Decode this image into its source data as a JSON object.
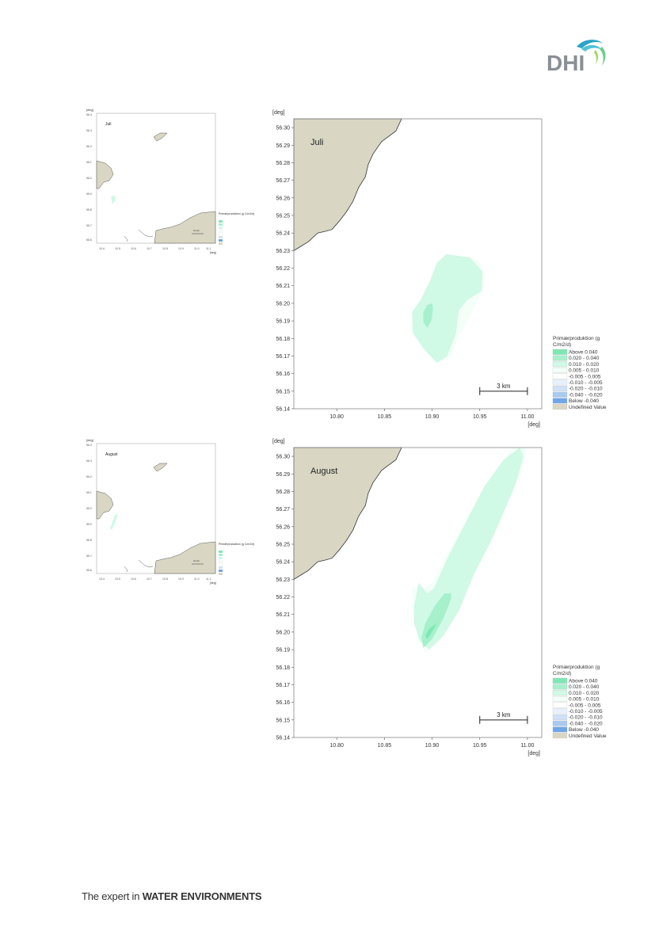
{
  "logo": {
    "text": "DHI"
  },
  "footer": {
    "prefix": "The expert in ",
    "bold": "WATER ENVIRONMENTS"
  },
  "axis_unit": "[deg]",
  "colors": {
    "land": "#d9d7c4",
    "coast": "#333333",
    "above_0_040": "#7ee8b4",
    "c_0_020_0_040": "#a6f0cc",
    "c_0_010_0_020": "#d0f9e6",
    "c_0_005_0_010": "#f4fff9"
  },
  "overview": {
    "x_ticks": [
      "10.4",
      "10.5",
      "10.6",
      "10.7",
      "10.8",
      "10.9",
      "11.0",
      "11.1"
    ],
    "y_ticks": [
      "56.4",
      "56.3",
      "56.2",
      "56.1",
      "56.0",
      "55.9",
      "55.8",
      "55.7",
      "55.6"
    ],
    "scale_label": "10 km",
    "legend_title": "Primærproduktion (g C/m2/d)"
  },
  "legend": {
    "title_line1": "Primærproduktion (g",
    "title_line2": "C/m2/d)",
    "items": [
      {
        "label": "Above    0.040",
        "color": "#7ee8b4"
      },
      {
        "label": " 0.020 -  0.040",
        "color": "#a6f0cc"
      },
      {
        "label": " 0.010 -  0.020",
        "color": "#d0f9e6"
      },
      {
        "label": " 0.005 -  0.010",
        "color": "#f4fff9"
      },
      {
        "label": "-0.005 -  0.005",
        "color": "#ffffff"
      },
      {
        "label": "-0.010 - -0.005",
        "color": "#e8f1fb"
      },
      {
        "label": "-0.020 - -0.010",
        "color": "#cfe1f7"
      },
      {
        "label": "-0.040 - -0.020",
        "color": "#a9c9f0"
      },
      {
        "label": "Below    -0.040",
        "color": "#6fa6e8"
      },
      {
        "label": "Undefined Value",
        "color": "#d9d7c4"
      }
    ]
  },
  "chart_data": [
    {
      "type": "heatmap",
      "title": "Juli",
      "xlabel": "[deg]",
      "ylabel": "[deg]",
      "xlim": [
        10.755,
        11.015
      ],
      "ylim": [
        56.14,
        56.305
      ],
      "x_ticks": [
        "10.80",
        "10.85",
        "10.90",
        "10.95",
        "11.00"
      ],
      "y_ticks": [
        "56.30",
        "56.29",
        "56.28",
        "56.27",
        "56.26",
        "56.25",
        "56.24",
        "56.23",
        "56.22",
        "56.21",
        "56.20",
        "56.19",
        "56.18",
        "56.17",
        "56.16",
        "56.15",
        "56.14"
      ],
      "scale_bar": "3 km",
      "legend_position": "right-bottom",
      "zones": [
        {
          "class": "0.005 - 0.010",
          "color": "#f4fff9",
          "polygon": [
            [
              10.928,
              56.227
            ],
            [
              10.95,
              56.224
            ],
            [
              10.955,
              56.21
            ],
            [
              10.945,
              56.198
            ],
            [
              10.93,
              56.183
            ],
            [
              10.918,
              56.168
            ],
            [
              10.905,
              56.167
            ],
            [
              10.89,
              56.174
            ],
            [
              10.877,
              56.186
            ],
            [
              10.882,
              56.196
            ],
            [
              10.893,
              56.207
            ],
            [
              10.905,
              56.22
            ]
          ]
        },
        {
          "class": "0.010 - 0.020",
          "color": "#d0f9e6",
          "polygon": [
            [
              10.915,
              56.228
            ],
            [
              10.94,
              56.226
            ],
            [
              10.953,
              56.218
            ],
            [
              10.952,
              56.207
            ],
            [
              10.937,
              56.202
            ],
            [
              10.928,
              56.196
            ],
            [
              10.925,
              56.183
            ],
            [
              10.916,
              56.17
            ],
            [
              10.905,
              56.166
            ],
            [
              10.893,
              56.173
            ],
            [
              10.88,
              56.183
            ],
            [
              10.879,
              56.195
            ],
            [
              10.888,
              56.202
            ],
            [
              10.898,
              56.213
            ],
            [
              10.905,
              56.223
            ]
          ]
        },
        {
          "class": "0.020 - 0.040",
          "color": "#a6f0cc",
          "polygon": [
            [
              10.9,
              56.2
            ],
            [
              10.901,
              56.197
            ],
            [
              10.899,
              56.19
            ],
            [
              10.895,
              56.186
            ],
            [
              10.891,
              56.189
            ],
            [
              10.891,
              56.195
            ],
            [
              10.895,
              56.199
            ]
          ]
        }
      ]
    },
    {
      "type": "heatmap",
      "title": "August",
      "xlabel": "[deg]",
      "ylabel": "[deg]",
      "xlim": [
        10.755,
        11.015
      ],
      "ylim": [
        56.14,
        56.305
      ],
      "x_ticks": [
        "10.80",
        "10.85",
        "10.90",
        "10.95",
        "11.00"
      ],
      "y_ticks": [
        "56.30",
        "56.29",
        "56.28",
        "56.27",
        "56.26",
        "56.25",
        "56.24",
        "56.23",
        "56.22",
        "56.21",
        "56.20",
        "56.19",
        "56.18",
        "56.17",
        "56.16",
        "56.15",
        "56.14"
      ],
      "scale_bar": "3 km",
      "legend_position": "right-bottom",
      "zones": [
        {
          "class": "0.005 - 0.010",
          "color": "#f4fff9",
          "polygon": [
            [
              10.985,
              56.305
            ],
            [
              11.0,
              56.305
            ],
            [
              10.992,
              56.29
            ],
            [
              10.978,
              56.272
            ],
            [
              10.965,
              56.258
            ],
            [
              10.948,
              56.238
            ],
            [
              10.932,
              56.218
            ],
            [
              10.91,
              56.2
            ],
            [
              10.893,
              56.188
            ],
            [
              10.886,
              56.195
            ],
            [
              10.88,
              56.21
            ],
            [
              10.879,
              56.226
            ],
            [
              10.888,
              56.224
            ],
            [
              10.9,
              56.228
            ],
            [
              10.917,
              56.245
            ],
            [
              10.935,
              56.264
            ],
            [
              10.955,
              56.283
            ]
          ]
        },
        {
          "class": "0.010 - 0.020",
          "color": "#d0f9e6",
          "polygon": [
            [
              10.992,
              56.305
            ],
            [
              10.996,
              56.3
            ],
            [
              10.988,
              56.285
            ],
            [
              10.975,
              56.268
            ],
            [
              10.962,
              56.252
            ],
            [
              10.944,
              56.233
            ],
            [
              10.928,
              56.212
            ],
            [
              10.912,
              56.198
            ],
            [
              10.897,
              56.19
            ],
            [
              10.887,
              56.195
            ],
            [
              10.881,
              56.205
            ],
            [
              10.881,
              56.215
            ],
            [
              10.886,
              56.228
            ],
            [
              10.895,
              56.222
            ],
            [
              10.902,
              56.225
            ],
            [
              10.917,
              56.243
            ],
            [
              10.935,
              56.262
            ],
            [
              10.955,
              56.283
            ],
            [
              10.975,
              56.298
            ]
          ]
        },
        {
          "class": "0.020 - 0.040",
          "color": "#a6f0cc",
          "polygon": [
            [
              10.92,
              56.222
            ],
            [
              10.92,
              56.219
            ],
            [
              10.912,
              56.208
            ],
            [
              10.9,
              56.196
            ],
            [
              10.891,
              56.191
            ],
            [
              10.889,
              56.197
            ],
            [
              10.893,
              56.205
            ],
            [
              10.903,
              56.215
            ],
            [
              10.913,
              56.222
            ]
          ]
        },
        {
          "class": "Above 0.040",
          "color": "#7ee8b4",
          "polygon": [
            [
              10.905,
              56.205
            ],
            [
              10.91,
              56.211
            ],
            [
              10.902,
              56.202
            ],
            [
              10.895,
              56.196
            ],
            [
              10.893,
              56.198
            ],
            [
              10.897,
              56.202
            ]
          ]
        }
      ]
    }
  ]
}
